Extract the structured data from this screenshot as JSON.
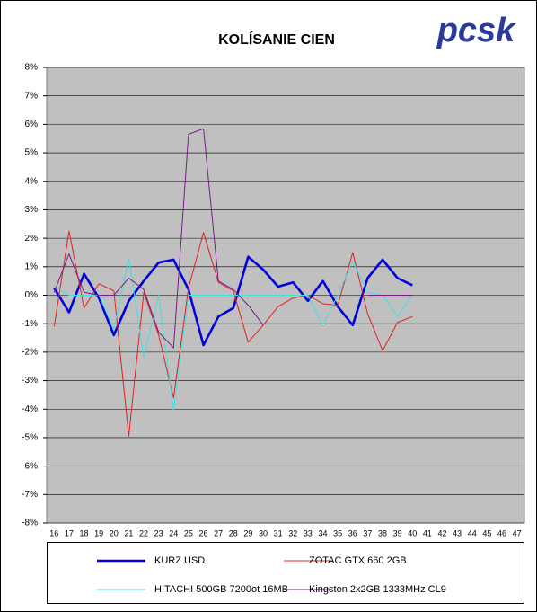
{
  "chart_data": {
    "type": "line",
    "title": "KOLÍSANIE CIEN",
    "logo": "pcsk",
    "categories": [
      "16",
      "17",
      "18",
      "19",
      "20",
      "21",
      "22",
      "23",
      "24",
      "25",
      "26",
      "27",
      "28",
      "29",
      "30",
      "31",
      "32",
      "33",
      "34",
      "35",
      "36",
      "37",
      "38",
      "39",
      "40",
      "41",
      "42",
      "43",
      "44",
      "45",
      "46",
      "47"
    ],
    "series": [
      {
        "name": "KURZ USD",
        "color": "#0000dd",
        "values": [
          0.25,
          -0.6,
          0.75,
          -0.1,
          -1.4,
          -0.2,
          0.5,
          1.15,
          1.25,
          0.2,
          -1.75,
          -0.75,
          -0.45,
          1.35,
          0.9,
          0.3,
          0.45,
          -0.2,
          0.5,
          -0.4,
          -1.05,
          0.6,
          1.25,
          0.6,
          0.35,
          null,
          null,
          null,
          null,
          null,
          null,
          null
        ]
      },
      {
        "name": "ZOTAC GTX 660 2GB",
        "color": "#e02020",
        "values": [
          -1.1,
          2.25,
          -0.45,
          0.4,
          0.15,
          -4.95,
          0.1,
          -1.4,
          -3.6,
          0.25,
          2.2,
          0.45,
          0.15,
          -1.65,
          -1.05,
          -0.4,
          -0.1,
          0,
          -0.3,
          -0.35,
          1.5,
          -0.65,
          -1.95,
          -0.95,
          -0.75,
          null,
          null,
          null,
          null,
          null,
          null,
          null
        ]
      },
      {
        "name": "HITACHI 500GB 7200ot 16MB",
        "color": "#40e0e0",
        "values": [
          0.3,
          0,
          0,
          0,
          -1.2,
          1.3,
          -2.2,
          0,
          -4.05,
          0,
          0,
          0,
          0,
          0,
          0,
          0,
          0,
          0,
          -1.05,
          0,
          1.2,
          0.1,
          0,
          -0.75,
          0,
          null,
          null,
          null,
          null,
          null,
          null,
          null
        ]
      },
      {
        "name": "Kingston 2x2GB 1333MHz CL9",
        "color": "#7a1a8a",
        "values": [
          0.1,
          1.45,
          0.1,
          0,
          0,
          0.6,
          0.2,
          -1.3,
          -1.85,
          5.65,
          5.85,
          0.5,
          0.2,
          -0.35,
          -1.05,
          null,
          null,
          null,
          null,
          null,
          null,
          0,
          0,
          0,
          0,
          null,
          null,
          null,
          null,
          null,
          null,
          null
        ]
      }
    ],
    "ylim": [
      -8,
      8
    ],
    "yticks": [
      {
        "value": -8,
        "label": "-8%"
      },
      {
        "value": -7,
        "label": "-7%"
      },
      {
        "value": -6,
        "label": "-6%"
      },
      {
        "value": -5,
        "label": "-5%"
      },
      {
        "value": -4,
        "label": "-4%"
      },
      {
        "value": -3,
        "label": "-3%"
      },
      {
        "value": -2,
        "label": "-2%"
      },
      {
        "value": -1,
        "label": "-1%"
      },
      {
        "value": 0,
        "label": "0%"
      },
      {
        "value": 1,
        "label": "1%"
      },
      {
        "value": 2,
        "label": "2%"
      },
      {
        "value": 3,
        "label": "3%"
      },
      {
        "value": 4,
        "label": "4%"
      },
      {
        "value": 5,
        "label": "5%"
      },
      {
        "value": 6,
        "label": "6%"
      },
      {
        "value": 7,
        "label": "7%"
      },
      {
        "value": 8,
        "label": "8%"
      }
    ],
    "grid": true,
    "legend": "bottom"
  }
}
